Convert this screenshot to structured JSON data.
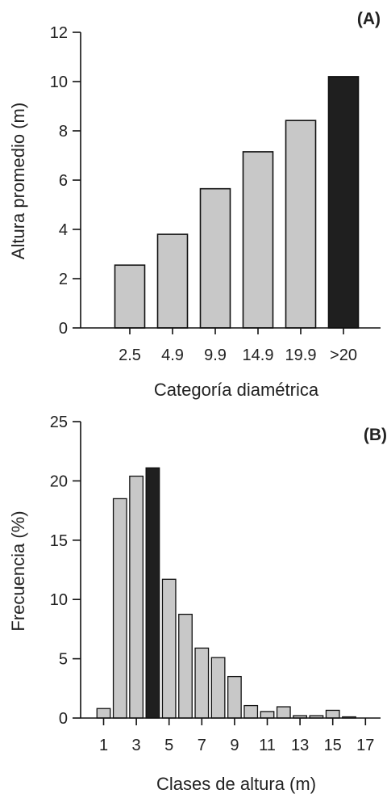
{
  "colors": {
    "bar_fill": "#c8c8c8",
    "highlight_fill": "#1f1f1f",
    "stroke": "#111111",
    "text": "#222222"
  },
  "chart_data": [
    {
      "panel_label": "(A)",
      "type": "bar",
      "categories": [
        "2.5",
        "4.9",
        "9.9",
        "14.9",
        "19.9",
        ">20"
      ],
      "values": [
        2.55,
        3.8,
        5.65,
        7.15,
        8.42,
        10.2
      ],
      "highlight_index": 5,
      "title": "",
      "xlabel": "Categoría diamétrica",
      "ylabel": "Altura promedio (m)",
      "ylim": [
        0,
        12
      ],
      "yticks": [
        "0",
        "2",
        "4",
        "6",
        "8",
        "10",
        "12"
      ],
      "grid": false,
      "legend": "none"
    },
    {
      "panel_label": "(B)",
      "type": "bar",
      "categories": [
        "1",
        "2",
        "3",
        "4",
        "5",
        "6",
        "7",
        "8",
        "9",
        "10",
        "11",
        "12",
        "13",
        "14",
        "15",
        "16"
      ],
      "values": [
        0.8,
        18.5,
        20.4,
        21.1,
        11.7,
        8.75,
        5.9,
        5.1,
        3.5,
        1.05,
        0.55,
        0.95,
        0.2,
        0.2,
        0.65,
        0.1
      ],
      "highlight_index": 3,
      "title": "",
      "xlabel": "Clases de altura (m)",
      "ylabel": "Frecuencia (%)",
      "ylim": [
        0,
        25
      ],
      "yticks": [
        "0",
        "5",
        "10",
        "15",
        "20",
        "25"
      ],
      "xticks": [
        "1",
        "3",
        "5",
        "7",
        "9",
        "11",
        "13",
        "15",
        "17"
      ],
      "grid": false,
      "legend": "none"
    }
  ]
}
